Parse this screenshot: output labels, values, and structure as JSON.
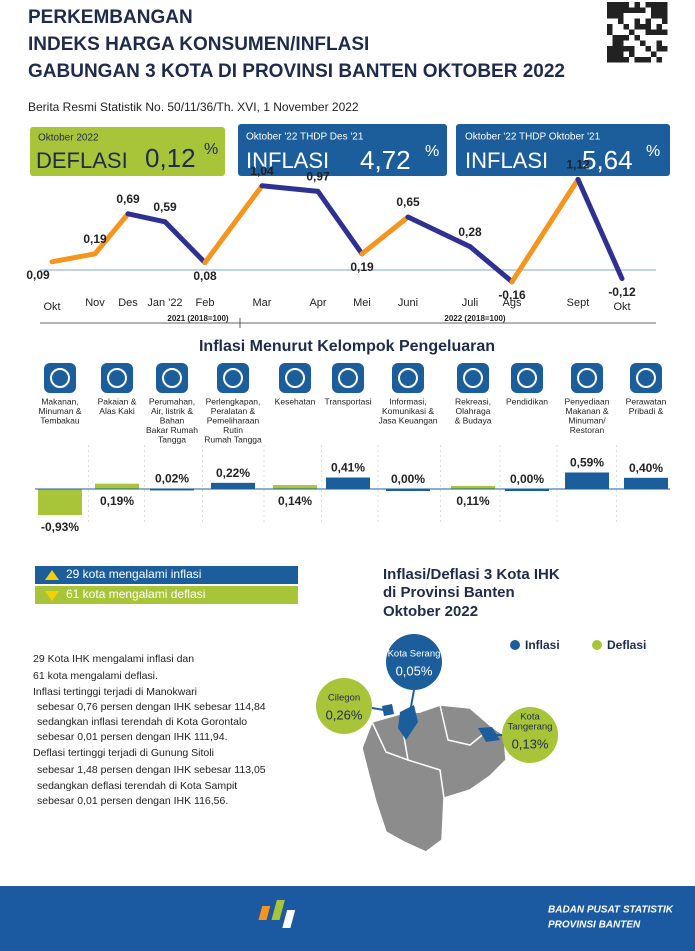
{
  "header": {
    "title": [
      "PERKEMBANGAN",
      "INDEKS HARGA KONSUMEN/INFLASI",
      "GABUNGAN 3 KOTA DI PROVINSI BANTEN OKTOBER 2022"
    ],
    "subtitle": "Berita Resmi Statistik No. 50/11/36/Th. XVI, 1 November 2022"
  },
  "summary": [
    {
      "period": "Oktober 2022",
      "label": "DEFLASI",
      "value": "0,12",
      "unit": "%"
    },
    {
      "period": "Oktober '22 THDP Des '21",
      "label": "INFLASI",
      "value": "4,72",
      "unit": "%"
    },
    {
      "period": "Oktober '22 THDP Oktober '21",
      "label": "INFLASI",
      "value": "5,64",
      "unit": "%"
    }
  ],
  "chart_data": [
    {
      "type": "line",
      "categories": [
        "Okt",
        "Nov",
        "Des",
        "Jan '22",
        "Feb",
        "Mar",
        "Apr",
        "Mei",
        "Juni",
        "Juli",
        "Ags",
        "Sept",
        "Okt"
      ],
      "values": [
        0.09,
        0.19,
        0.69,
        0.59,
        0.08,
        1.04,
        0.97,
        0.19,
        0.65,
        0.28,
        -0.16,
        1.12,
        -0.12
      ],
      "value_labels": [
        "0,09",
        "0,19",
        "0,69",
        "0,59",
        "0,08",
        "1,04",
        "0,97",
        "0,19",
        "0,65",
        "0,28",
        "-0,16",
        "1,12",
        "-0,12"
      ],
      "period_labels": [
        "2021 (2018=100)",
        "2022 (2018=100)"
      ],
      "colors": {
        "up": "#f7941d",
        "down": "#2e3192"
      }
    },
    {
      "type": "bar",
      "title": "Inflasi Menurut Kelompok Pengeluaran",
      "categories": [
        [
          "Makanan,",
          "Minuman &",
          "Tembakau"
        ],
        [
          "Pakaian &",
          "Alas Kaki"
        ],
        [
          "Perumahan,",
          "Air, listrik &",
          "Bahan",
          "Bakar Rumah",
          "Tangga"
        ],
        [
          "Perlengkapan,",
          "Peralatan &",
          "Pemeliharaan",
          "Rutin",
          "Rumah Tangga"
        ],
        [
          "Kesehatan"
        ],
        [
          "Transportasi"
        ],
        [
          "Informasi,",
          "Komunikasi &",
          "Jasa Keuangan"
        ],
        [
          "Rekreasi,",
          "Olahraga",
          "& Budaya"
        ],
        [
          "Pendidikan"
        ],
        [
          "Penyediaan",
          "Makanan &",
          "Minuman/",
          "Restoran"
        ],
        [
          "Perawatan",
          "Pribadi &"
        ]
      ],
      "values": [
        -0.93,
        0.19,
        0.02,
        0.22,
        0.14,
        0.41,
        0.0,
        0.11,
        0.0,
        0.59,
        0.4
      ],
      "value_labels": [
        "-0,93%",
        "0,19%",
        "0,02%",
        "0,22%",
        "0,14%",
        "0,41%",
        "0,00%",
        "0,11%",
        "0,00%",
        "0,59%",
        "0,40%"
      ],
      "colors": [
        "#a8c539",
        "#a8c539",
        "#1c5e9c",
        "#1c5e9c",
        "#a8c539",
        "#1c5e9c",
        "#1c5e9c",
        "#a8c539",
        "#1c5e9c",
        "#1c5e9c",
        "#1c5e9c"
      ]
    }
  ],
  "city_counts": [
    "29 kota mengalami inflasi",
    "61 kota mengalami deflasi"
  ],
  "notes": [
    "29 Kota IHK mengalami inflasi dan",
    "61 kota mengalami deflasi.",
    "Inflasi tertinggi terjadi di Manokwari",
    "sebesar 0,76 persen dengan IHK sebesar 114,84",
    "sedangkan inflasi terendah di Kota Gorontalo",
    "sebesar 0,01 persen dengan IHK 111,94.",
    "Deflasi tertinggi terjadi di Gunung Sitoli",
    "sebesar 1,48 persen dengan IHK sebesar 113,05",
    "sedangkan deflasi terendah di Kota Sampit",
    "sebesar 0,01 persen dengan IHK 116,56."
  ],
  "map": {
    "title": [
      "Inflasi/Deflasi 3 Kota IHK",
      "di Provinsi Banten",
      "Oktober 2022"
    ],
    "legend": [
      {
        "label": "Inflasi",
        "color": "#1c5e9c"
      },
      {
        "label": "Deflasi",
        "color": "#a8c539"
      }
    ],
    "cities": [
      {
        "name": [
          "Kota Serang"
        ],
        "value": "0,05%",
        "color": "#1c5e9c"
      },
      {
        "name": [
          "Cilegon"
        ],
        "value": "0,26%",
        "color": "#a8c539"
      },
      {
        "name": [
          "Kota",
          "Tangerang"
        ],
        "value": "0,13%",
        "color": "#a8c539"
      }
    ]
  },
  "footer": [
    "BADAN PUSAT STATISTIK",
    "PROVINSI BANTEN"
  ]
}
